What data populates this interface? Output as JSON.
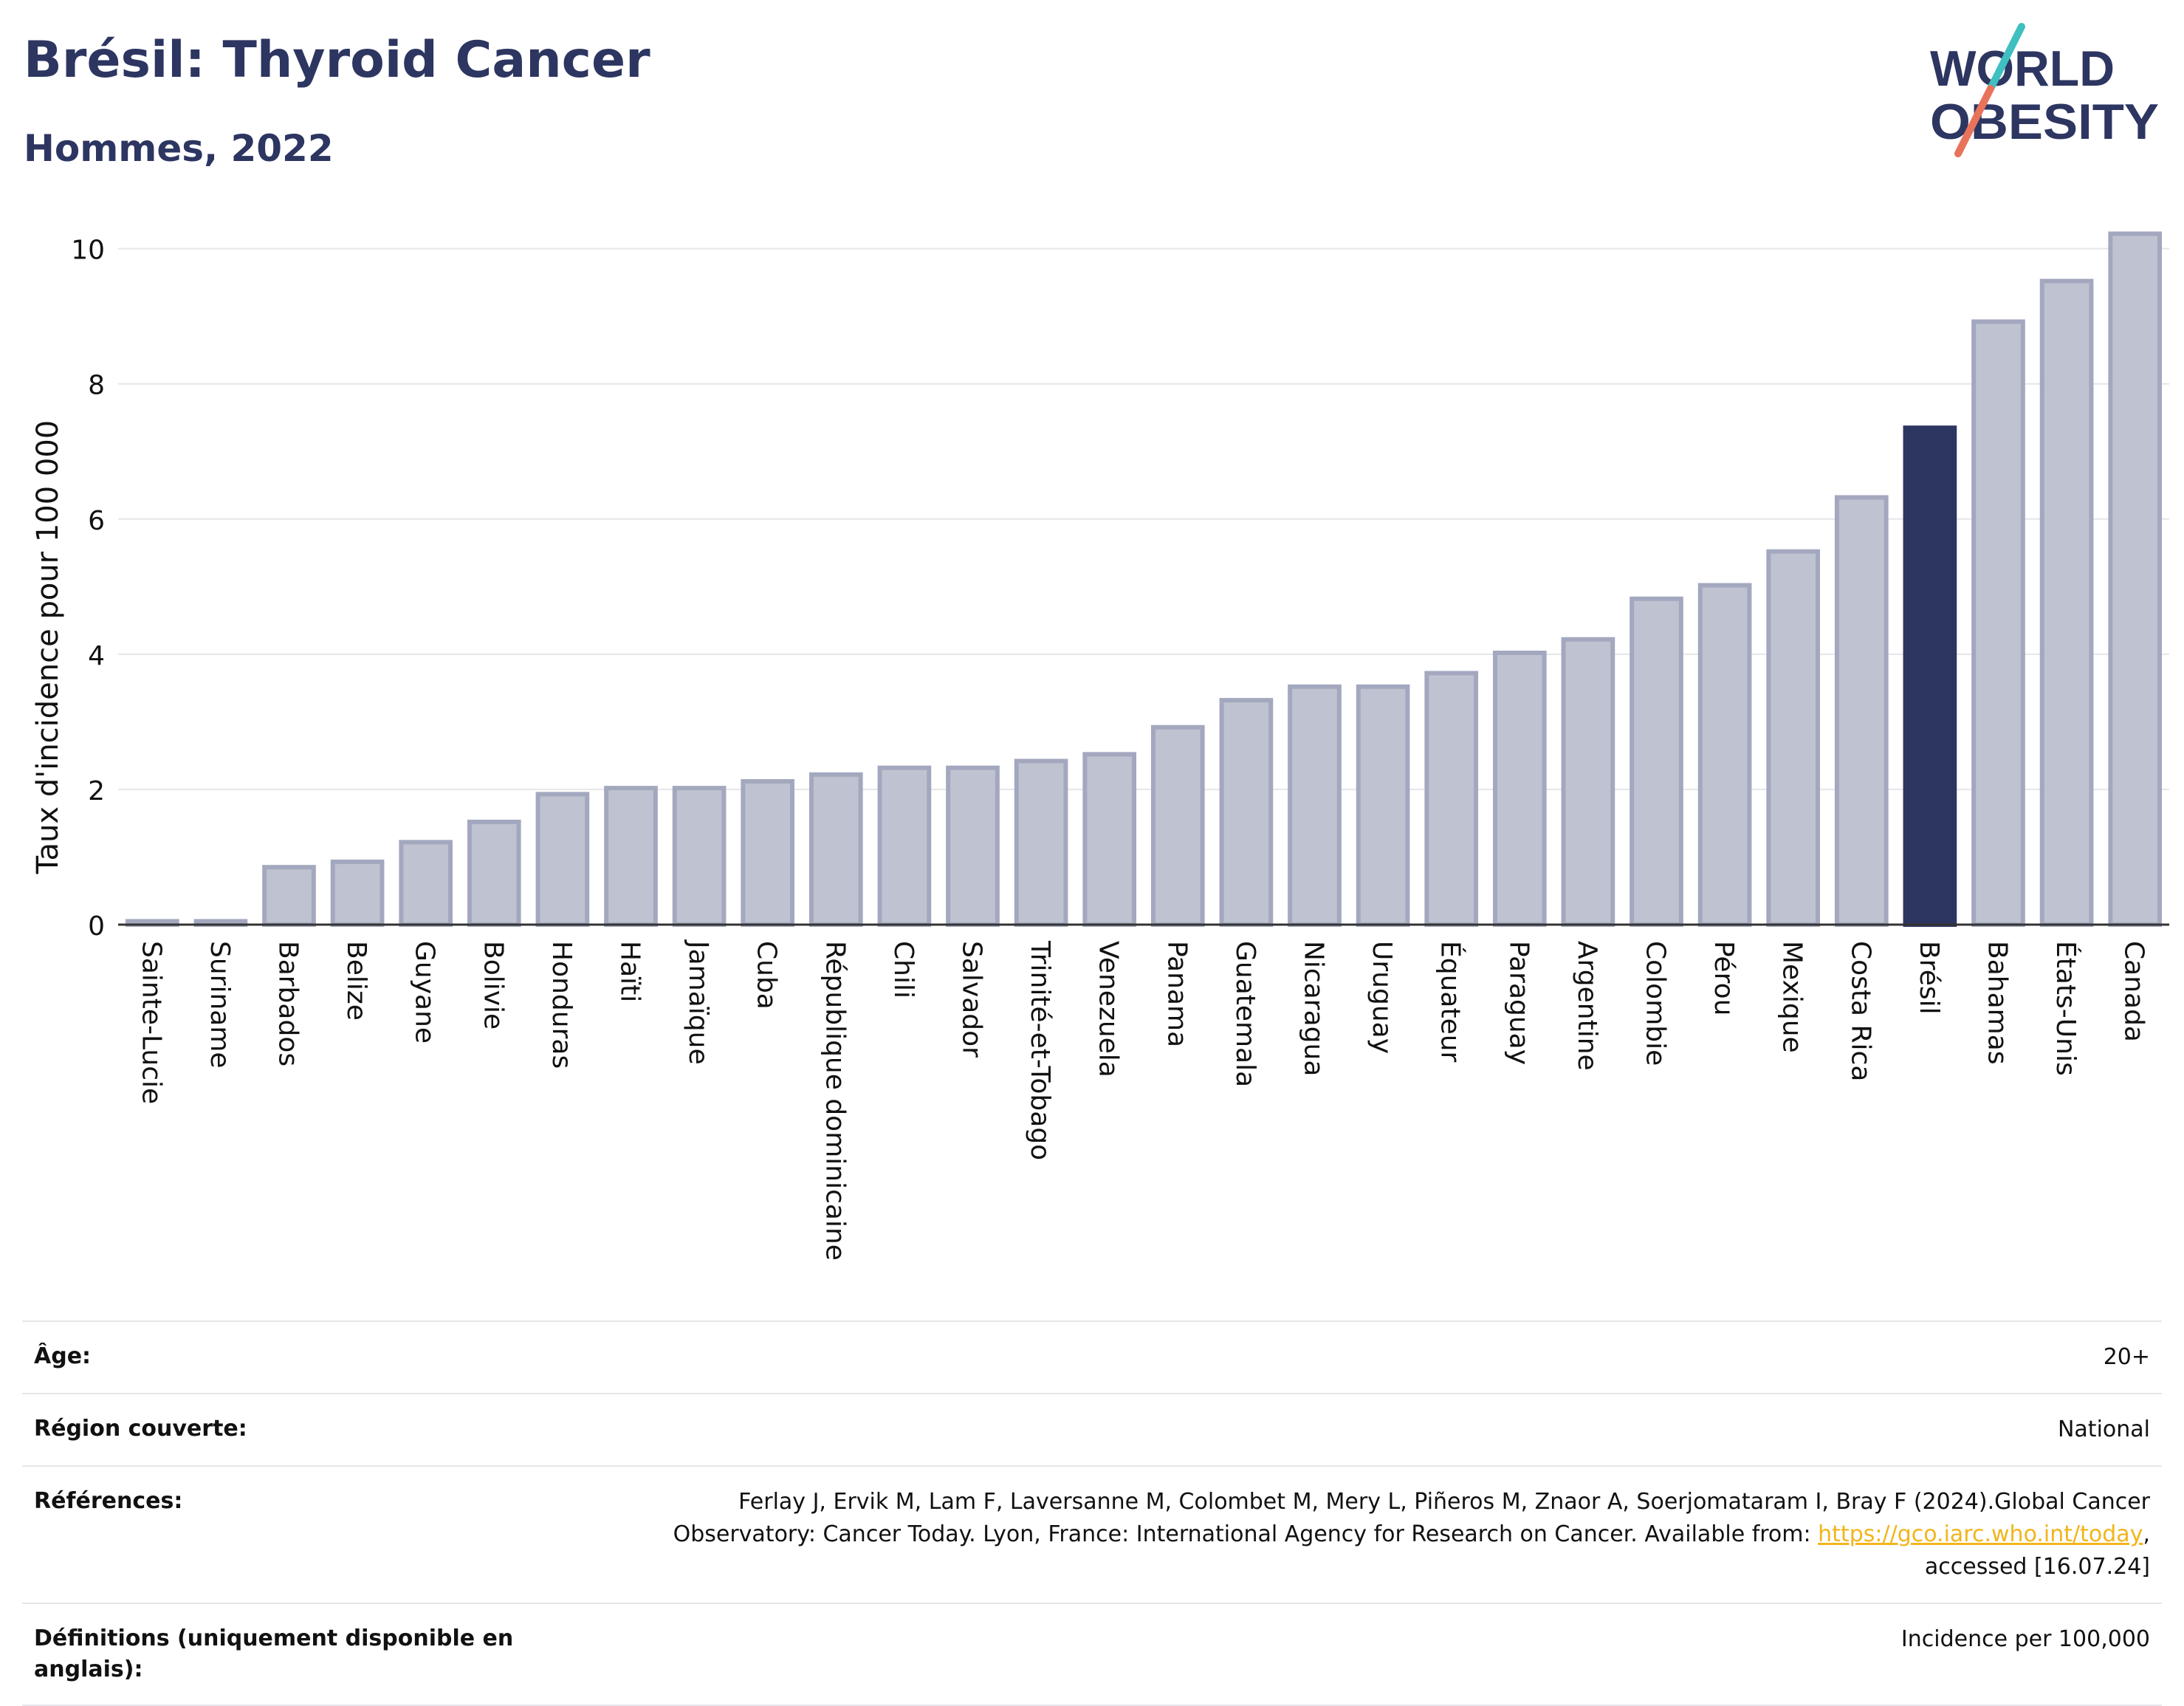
{
  "header": {
    "title": "Brésil: Thyroid Cancer",
    "subtitle": "Hommes, 2022"
  },
  "logo": {
    "line1": "WORLD",
    "line2": "OBESITY",
    "slash_colors": [
      "#3fbfbf",
      "#e8735a"
    ],
    "text_color": "#2d3561"
  },
  "colors": {
    "bar": "#bfc2d0",
    "bar_border": "#a3a8bf",
    "highlight": "#2d3561",
    "grid": "#e6e6ea",
    "axis": "#333333"
  },
  "chart_data": {
    "type": "bar",
    "ylabel": "Taux d'incidence pour 100 000",
    "ylim": [
      0,
      10.4
    ],
    "yticks": [
      0,
      2,
      4,
      6,
      8,
      10
    ],
    "grid": true,
    "highlight": "Brésil",
    "categories": [
      "Sainte-Lucie",
      "Suriname",
      "Barbados",
      "Belize",
      "Guyane",
      "Bolivie",
      "Honduras",
      "Haïti",
      "Jamaïque",
      "Cuba",
      "République dominicaine",
      "Chili",
      "Salvador",
      "Trinité-et-Tobago",
      "Venezuela",
      "Panama",
      "Guatemala",
      "Nicaragua",
      "Uruguay",
      "Équateur",
      "Paraguay",
      "Argentine",
      "Colombie",
      "Pérou",
      "Mexique",
      "Costa Rica",
      "Brésil",
      "Bahamas",
      "États-Unis",
      "Canada"
    ],
    "values": [
      0.05,
      0.05,
      0.85,
      0.93,
      1.22,
      1.52,
      1.93,
      2.02,
      2.02,
      2.12,
      2.22,
      2.32,
      2.32,
      2.42,
      2.52,
      2.92,
      3.32,
      3.52,
      3.52,
      3.72,
      4.02,
      4.22,
      4.82,
      5.02,
      5.52,
      6.32,
      7.35,
      8.92,
      9.52,
      10.22
    ]
  },
  "info": {
    "age_label": "Âge:",
    "age_value": "20+",
    "region_label": "Région couverte:",
    "region_value": "National",
    "refs_label": "Références:",
    "refs_text_1": "Ferlay J, Ervik M, Lam F, Laversanne M, Colombet M, Mery L, Piñeros M, Znaor A, Soerjomataram I, Bray F (2024).Global Cancer",
    "refs_text_2": "Observatory: Cancer Today. Lyon, France: International Agency for Research on Cancer. Available from: ",
    "refs_link": "https://gco.iarc.who.int/today",
    "refs_text_3": ",",
    "refs_text_4": "accessed [16.07.24]",
    "defs_label": "Définitions (uniquement disponible en anglais):",
    "defs_value": "Incidence per 100,000"
  }
}
